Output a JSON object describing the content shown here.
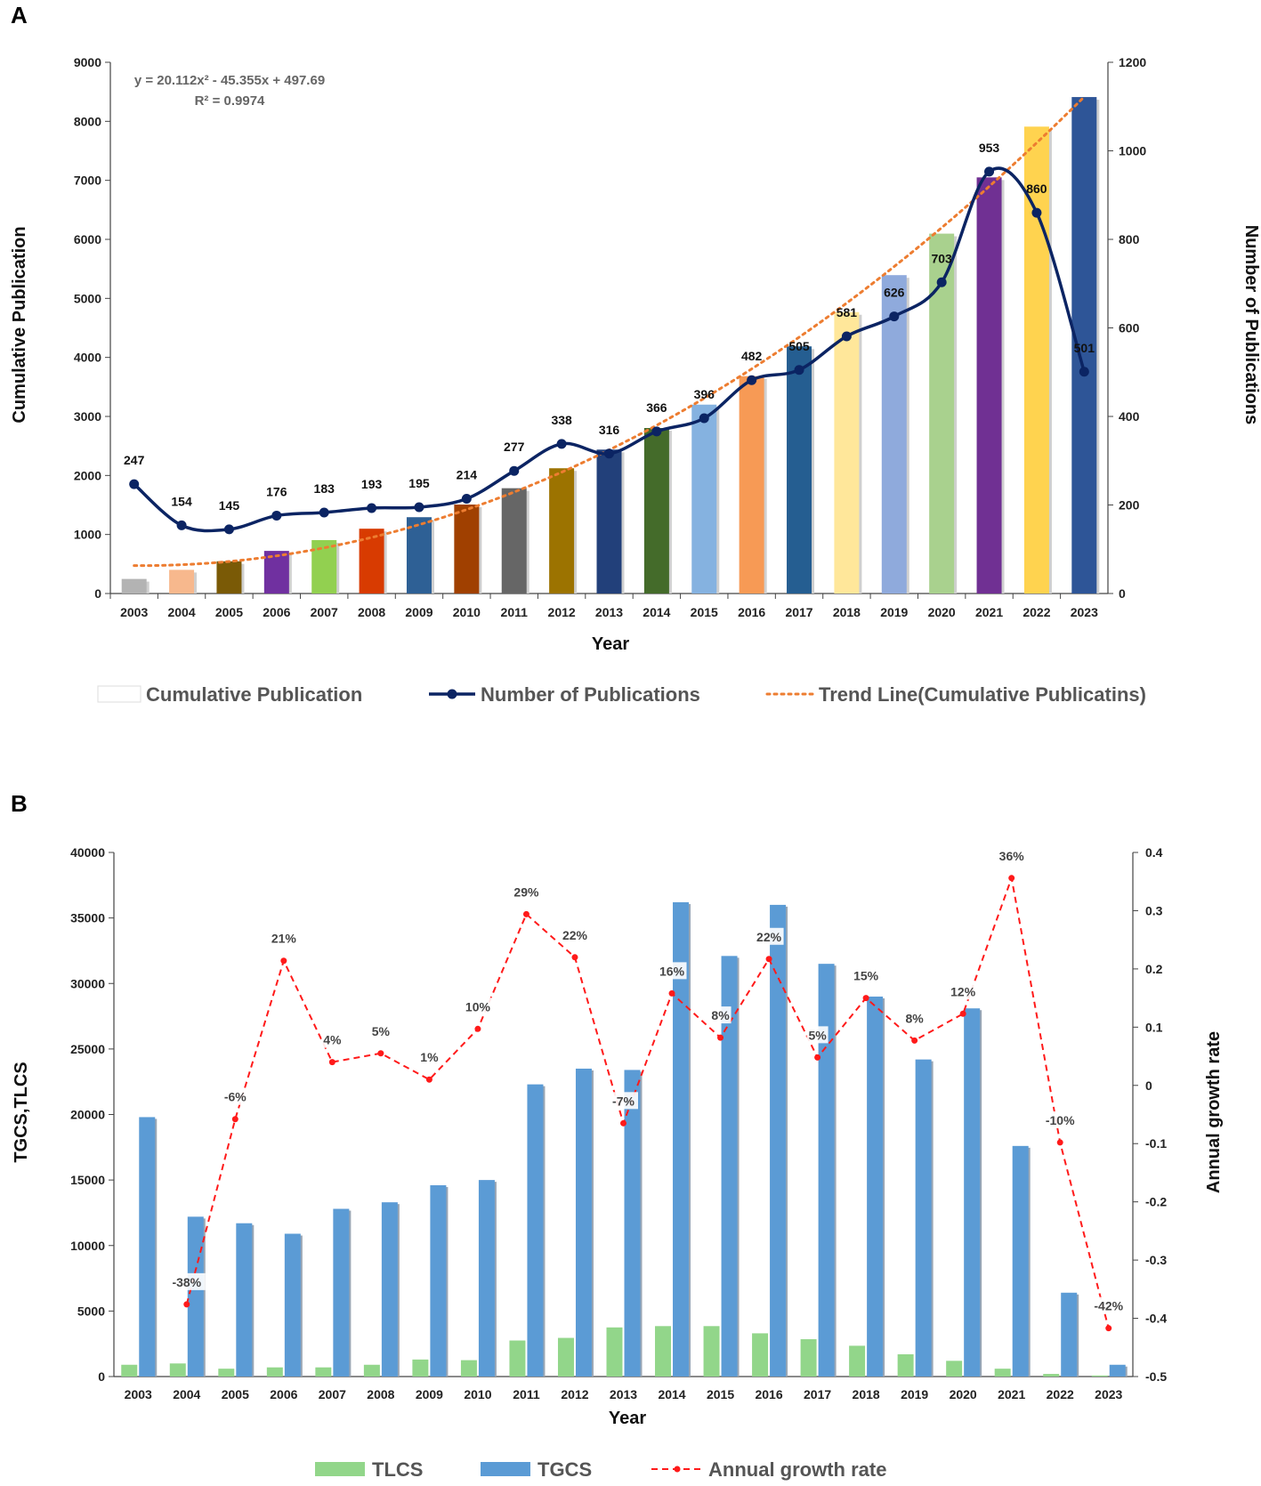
{
  "chart_data": [
    {
      "panel": "A",
      "type": "bar",
      "xlabel": "Year",
      "ylabel": "Cumulative Publication",
      "y2label": "Number of Publications",
      "ylim": [
        0,
        9000
      ],
      "y2lim": [
        0,
        1200
      ],
      "yticks": [
        0,
        1000,
        2000,
        3000,
        4000,
        5000,
        6000,
        7000,
        8000,
        9000
      ],
      "y2ticks": [
        0,
        200,
        400,
        600,
        800,
        1000,
        1200
      ],
      "categories": [
        "2003",
        "2004",
        "2005",
        "2006",
        "2007",
        "2008",
        "2009",
        "2010",
        "2011",
        "2012",
        "2013",
        "2014",
        "2015",
        "2016",
        "2017",
        "2018",
        "2019",
        "2020",
        "2021",
        "2022",
        "2023"
      ],
      "equation_line1": "y = 20.112x² - 45.355x + 497.69",
      "equation_line2": "R² = 0.9974",
      "series": [
        {
          "name": "Cumulative Publication",
          "type": "bar",
          "axis": "left",
          "values": [
            247,
            401,
            546,
            722,
            905,
            1098,
            1293,
            1507,
            1784,
            2122,
            2438,
            2804,
            3200,
            3682,
            4187,
            4768,
            5394,
            6097,
            7050,
            7910,
            8411
          ],
          "colors": [
            "#b3b3b3",
            "#f7b88d",
            "#7a5a06",
            "#7030a0",
            "#92d050",
            "#d83b01",
            "#2e6095",
            "#a04000",
            "#666666",
            "#9c7300",
            "#22407a",
            "#446b2a",
            "#85b2e0",
            "#f79a55",
            "#255e91",
            "#ffe79a",
            "#8faadc",
            "#a9d18e",
            "#703093",
            "#ffd34f",
            "#2e5597"
          ]
        },
        {
          "name": "Number of Publications",
          "type": "line",
          "axis": "right",
          "color": "#0b2463",
          "values": [
            247,
            154,
            145,
            176,
            183,
            193,
            195,
            214,
            277,
            338,
            316,
            366,
            396,
            482,
            505,
            581,
            626,
            703,
            953,
            860,
            501
          ]
        },
        {
          "name": "Trend Line(Cumulative Publicatins)",
          "type": "trend",
          "axis": "left",
          "color": "#ed7d31",
          "coefficients": [
            20.112,
            -45.355,
            497.69
          ]
        }
      ],
      "legend": [
        "Cumulative Publication",
        "Number of Publications",
        "Trend Line(Cumulative Publicatins)"
      ]
    },
    {
      "panel": "B",
      "type": "bar",
      "xlabel": "Year",
      "ylabel": "TGCS,TLCS",
      "y2label": "Annual growth rate",
      "ylim": [
        0,
        40000
      ],
      "y2lim": [
        -0.5,
        0.4
      ],
      "yticks": [
        0,
        5000,
        10000,
        15000,
        20000,
        25000,
        30000,
        35000,
        40000
      ],
      "y2ticks": [
        0.4,
        0.3,
        0.2,
        0.1,
        0,
        -0.1,
        -0.2,
        -0.3,
        -0.4,
        -0.5
      ],
      "categories": [
        "2003",
        "2004",
        "2005",
        "2006",
        "2007",
        "2008",
        "2009",
        "2010",
        "2011",
        "2012",
        "2013",
        "2014",
        "2015",
        "2016",
        "2017",
        "2018",
        "2019",
        "2020",
        "2021",
        "2022",
        "2023"
      ],
      "series": [
        {
          "name": "TLCS",
          "type": "bar",
          "axis": "left",
          "color": "#92d68a",
          "values": [
            900,
            1000,
            600,
            700,
            700,
            900,
            1300,
            1250,
            2750,
            2950,
            3750,
            3850,
            3850,
            3300,
            2850,
            2350,
            1700,
            1200,
            600,
            200,
            80
          ]
        },
        {
          "name": "TGCS",
          "type": "bar",
          "axis": "left",
          "color": "#5b9bd5",
          "values": [
            19800,
            12200,
            11700,
            10900,
            12800,
            13300,
            14600,
            15000,
            22300,
            23500,
            23400,
            36200,
            32100,
            36000,
            31500,
            29000,
            24200,
            28100,
            17600,
            6400,
            900
          ]
        },
        {
          "name": "Annual growth rate",
          "type": "line",
          "axis": "right",
          "color": "#ff1a1a",
          "values": [
            null,
            -0.376,
            -0.058,
            0.214,
            0.04,
            0.055,
            0.01,
            0.097,
            0.294,
            0.22,
            -0.065,
            0.158,
            0.082,
            0.217,
            0.048,
            0.15,
            0.077,
            0.123,
            0.356,
            -0.098,
            -0.417
          ],
          "labels": [
            "",
            "-38%",
            "-6%",
            "21%",
            "4%",
            "5%",
            "1%",
            "10%",
            "29%",
            "22%",
            "-7%",
            "16%",
            "8%",
            "22%",
            "5%",
            "15%",
            "8%",
            "12%",
            "36%",
            "-10%",
            "-42%"
          ]
        }
      ],
      "legend": [
        "TLCS",
        "TGCS",
        "Annual growth rate"
      ]
    }
  ],
  "panel_labels": [
    "A",
    "B"
  ]
}
